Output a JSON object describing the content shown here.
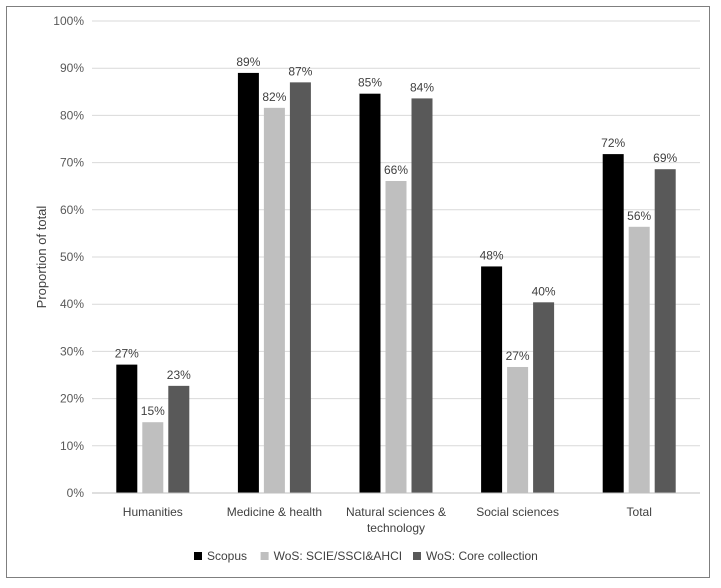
{
  "chart_data": {
    "type": "bar",
    "title": "",
    "xlabel": "",
    "ylabel": "Proportion of total",
    "ylim": [
      0,
      100
    ],
    "yticks": [
      "0%",
      "10%",
      "20%",
      "30%",
      "40%",
      "50%",
      "60%",
      "70%",
      "80%",
      "90%",
      "100%"
    ],
    "categories": [
      [
        "Humanities"
      ],
      [
        "Medicine & health"
      ],
      [
        "Natural sciences &",
        "technology"
      ],
      [
        "Social sciences"
      ],
      [
        "Total"
      ]
    ],
    "series": [
      {
        "name": "Scopus",
        "color": "#000000",
        "values": [
          27.2,
          89.0,
          84.6,
          48.0,
          71.8
        ],
        "labels": [
          "27%",
          "89%",
          "85%",
          "48%",
          "72%"
        ]
      },
      {
        "name": "WoS: SCIE/SSCI&AHCI",
        "color": "#bfbfbf",
        "values": [
          15.0,
          81.6,
          66.1,
          26.7,
          56.4
        ],
        "labels": [
          "15%",
          "82%",
          "66%",
          "27%",
          "56%"
        ]
      },
      {
        "name": "WoS: Core collection",
        "color": "#595959",
        "values": [
          22.7,
          87.0,
          83.6,
          40.4,
          68.6
        ],
        "labels": [
          "23%",
          "87%",
          "84%",
          "40%",
          "69%"
        ]
      }
    ],
    "grid": true,
    "legend": "bottom"
  }
}
